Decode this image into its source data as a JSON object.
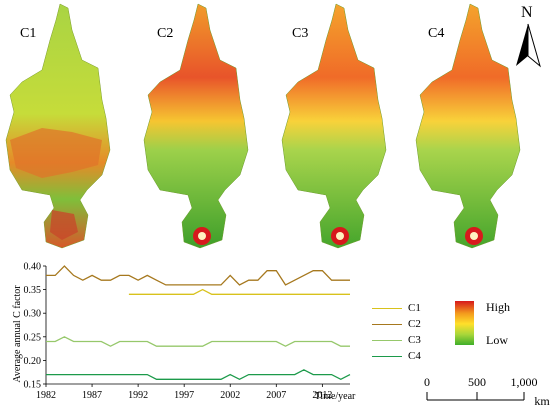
{
  "maps": [
    {
      "label": "C1"
    },
    {
      "label": "C2"
    },
    {
      "label": "C3"
    },
    {
      "label": "C4"
    }
  ],
  "north_arrow": {
    "letter": "N",
    "icon": "north-arrow-icon"
  },
  "colorbar": {
    "high": "High",
    "low": "Low",
    "colors": [
      "#d7191c",
      "#f39a1d",
      "#ffe02a",
      "#a8d63a",
      "#3fae2a"
    ]
  },
  "scale_bar": {
    "labels": [
      "0",
      "500",
      "1,000"
    ],
    "unit": "km"
  },
  "chart_data": {
    "type": "line",
    "ylabel": "Average annual C factor",
    "xlabel": "Time/year",
    "ylim": [
      0.15,
      0.4
    ],
    "yticks": [
      "0.40",
      "0.35",
      "0.30",
      "0.25",
      "0.20",
      "0.15"
    ],
    "xlim": [
      1982,
      2015
    ],
    "xticks": [
      "1982",
      "1987",
      "1992",
      "1997",
      "2002",
      "2007",
      "2012"
    ],
    "legend_position": "right",
    "series": [
      {
        "name": "C1",
        "color": "#d8c21c",
        "x": [
          1991,
          1998,
          1999,
          2000,
          2015
        ],
        "values": [
          0.34,
          0.34,
          0.35,
          0.34,
          0.34
        ]
      },
      {
        "name": "C2",
        "color": "#a6781e",
        "x": [
          1982,
          1983,
          1984,
          1985,
          1986,
          1987,
          1988,
          1989,
          1990,
          1991,
          1992,
          1993,
          1994,
          1995,
          1996,
          1997,
          1998,
          1999,
          2000,
          2001,
          2002,
          2003,
          2004,
          2005,
          2006,
          2007,
          2008,
          2009,
          2010,
          2011,
          2012,
          2013,
          2014,
          2015
        ],
        "values": [
          0.38,
          0.38,
          0.4,
          0.38,
          0.37,
          0.38,
          0.37,
          0.37,
          0.38,
          0.38,
          0.37,
          0.38,
          0.37,
          0.36,
          0.36,
          0.36,
          0.36,
          0.36,
          0.36,
          0.36,
          0.38,
          0.36,
          0.37,
          0.37,
          0.39,
          0.39,
          0.36,
          0.37,
          0.38,
          0.39,
          0.39,
          0.37,
          0.37,
          0.37
        ]
      },
      {
        "name": "C3",
        "color": "#96c86b",
        "x": [
          1982,
          1983,
          1984,
          1985,
          1986,
          1987,
          1988,
          1989,
          1990,
          1991,
          1992,
          1993,
          1994,
          1995,
          1996,
          1997,
          1998,
          1999,
          2000,
          2001,
          2002,
          2003,
          2004,
          2005,
          2006,
          2007,
          2008,
          2009,
          2010,
          2011,
          2012,
          2013,
          2014,
          2015
        ],
        "values": [
          0.24,
          0.24,
          0.25,
          0.24,
          0.24,
          0.24,
          0.24,
          0.23,
          0.24,
          0.24,
          0.24,
          0.24,
          0.23,
          0.23,
          0.23,
          0.23,
          0.23,
          0.23,
          0.24,
          0.24,
          0.24,
          0.24,
          0.24,
          0.24,
          0.24,
          0.24,
          0.23,
          0.24,
          0.24,
          0.24,
          0.24,
          0.24,
          0.23,
          0.23
        ]
      },
      {
        "name": "C4",
        "color": "#1c9a4a",
        "x": [
          1982,
          1983,
          1984,
          1985,
          1986,
          1987,
          1988,
          1989,
          1990,
          1991,
          1992,
          1993,
          1994,
          1995,
          1996,
          1997,
          1998,
          1999,
          2000,
          2001,
          2002,
          2003,
          2004,
          2005,
          2006,
          2007,
          2008,
          2009,
          2010,
          2011,
          2012,
          2013,
          2014,
          2015
        ],
        "values": [
          0.17,
          0.17,
          0.17,
          0.17,
          0.17,
          0.17,
          0.17,
          0.17,
          0.17,
          0.17,
          0.17,
          0.17,
          0.16,
          0.16,
          0.16,
          0.16,
          0.16,
          0.16,
          0.16,
          0.16,
          0.17,
          0.16,
          0.17,
          0.17,
          0.17,
          0.17,
          0.17,
          0.17,
          0.18,
          0.17,
          0.17,
          0.17,
          0.16,
          0.17
        ]
      }
    ]
  }
}
